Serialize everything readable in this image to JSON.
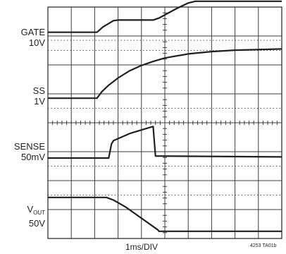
{
  "chart_data": {
    "type": "line",
    "xlabel": "1ms/DIV",
    "figure_id": "4253 TA01b",
    "divisions": {
      "x": 10,
      "y": 8
    },
    "x_range_div": [
      0,
      10
    ],
    "y_range_div": [
      0,
      8
    ],
    "grid": true,
    "series": [
      {
        "name": "GATE",
        "scale": "10V",
        "unit": "div",
        "x": [
          0,
          2.1,
          2.35,
          2.8,
          3.0,
          4.5,
          4.75,
          5.5,
          6.0,
          6.3,
          10
        ],
        "y": [
          7.13,
          7.13,
          7.31,
          7.53,
          7.55,
          7.55,
          7.62,
          7.95,
          8.14,
          8.2,
          8.2
        ]
      },
      {
        "name": "SS",
        "scale": "1V",
        "unit": "div",
        "x": [
          0,
          2.1,
          2.3,
          2.6,
          3.0,
          3.5,
          4.0,
          4.5,
          5.0,
          6.0,
          7.0,
          8.0,
          10
        ],
        "y": [
          4.85,
          4.85,
          5.07,
          5.3,
          5.55,
          5.8,
          5.98,
          6.12,
          6.24,
          6.38,
          6.46,
          6.51,
          6.55
        ]
      },
      {
        "name": "SENSE",
        "scale": "50mV",
        "unit": "div",
        "x": [
          0,
          2.6,
          2.72,
          2.8,
          3.5,
          4.4,
          4.5,
          4.6,
          10
        ],
        "y": [
          2.78,
          2.78,
          3.27,
          3.38,
          3.63,
          3.85,
          3.87,
          2.85,
          2.82
        ]
      },
      {
        "name": "V_OUT",
        "name_main": "V",
        "name_sub": "OUT",
        "scale": "50V",
        "unit": "div",
        "x": [
          0,
          2.5,
          2.8,
          3.3,
          4.7,
          4.75,
          10
        ],
        "y": [
          1.42,
          1.42,
          1.33,
          1.1,
          0.3,
          0.25,
          0.25
        ]
      }
    ],
    "reference_levels_div": [
      1.5,
      2.5,
      4.5,
      6.5,
      6.85
    ],
    "colors": {
      "trace": "#231f20",
      "grid": "#3c3c3c",
      "frame": "#231f20",
      "background": "#ffffff"
    }
  }
}
